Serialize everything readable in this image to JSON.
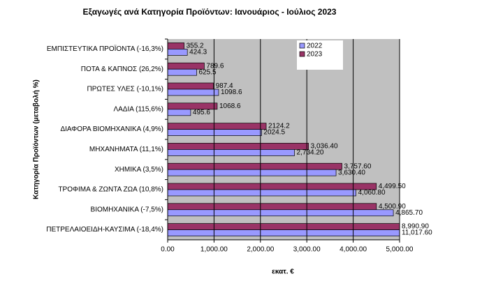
{
  "chart_data": {
    "type": "hbar",
    "title": "Εξαγωγές ανά Κατηγορία Προϊόντων: Ιανουάριος - Ιούλιος 2023",
    "x_label": "εκατ. €",
    "y_label": "Κατηγορία Προϊόντων (μεταβολή %)",
    "categories": [
      "ΕΜΠΙΣΤΕΥΤΙΚΑ ΠΡΟΪΟΝΤΑ (-16,3%)",
      "ΠΟΤΑ & ΚΑΠΝΟΣ (26,2%)",
      "ΠΡΩΤΕΣ ΥΛΕΣ (-10,1%)",
      "ΛΑΔΙΑ (115,6%)",
      "ΔΙΑΦΟΡΑ ΒΙΟΜΗΧΑΝΙΚΑ (4,9%)",
      "ΜΗΧΑΝΗΜΑΤΑ (11,1%)",
      "ΧΗΜΙΚΑ (3,5%)",
      "ΤΡΟΦΙΜΑ & ΖΩΝΤΑ ΖΩΑ (10,8%)",
      "ΒΙΟΜΗΧΑΝΙΚΑ (-7,5%)",
      "ΠΕΤΡΕΛΑΙΟΕΙΔΗ-ΚΑΥΣΙΜΑ (-18,4%)"
    ],
    "series": [
      {
        "name": "2022",
        "color": "#9999ff",
        "values": [
          424.3,
          625.5,
          1098.6,
          495.6,
          2024.5,
          2734.2,
          3630.4,
          4060.8,
          4865.7,
          11017.6
        ],
        "value_labels": [
          "424.3",
          "625.5",
          "1098.6",
          "495.6",
          "2024.5",
          "2,734.20",
          "3,630.40",
          "4,060.80",
          "4,865.70",
          "11,017.60"
        ]
      },
      {
        "name": "2023",
        "color": "#993366",
        "values": [
          355.2,
          789.6,
          987.4,
          1068.6,
          2124.2,
          3036.4,
          3757.6,
          4499.5,
          4500.9,
          8990.9
        ],
        "value_labels": [
          "355.2",
          "789.6",
          "987.4",
          "1068.6",
          "2124.2",
          "3,036.40",
          "3,757.60",
          "4,499.50",
          "4,500.90",
          "8,990.90"
        ]
      }
    ],
    "xlim": [
      0,
      5000
    ],
    "xticks": [
      {
        "value": 0,
        "label": "0.00"
      },
      {
        "value": 1000,
        "label": "1,000.00"
      },
      {
        "value": 2000,
        "label": "2,000.00"
      },
      {
        "value": 3000,
        "label": "3,000.00"
      },
      {
        "value": 4000,
        "label": "4,000.00"
      },
      {
        "value": 5000,
        "label": "5,000.00"
      }
    ],
    "grid": true
  }
}
